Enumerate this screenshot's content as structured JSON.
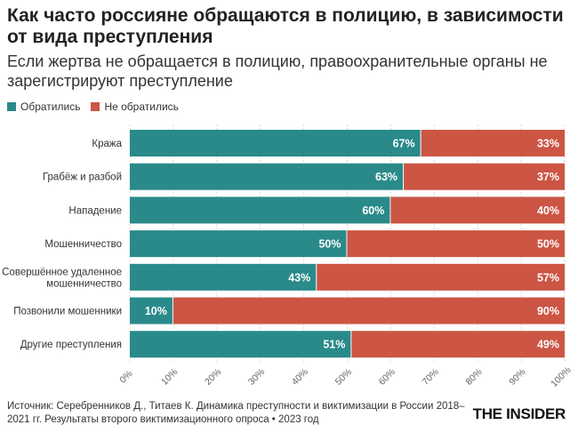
{
  "title": "Как часто россияне обращаются в полицию, в зависимости от вида преступления",
  "subtitle": "Если жертва не обращается в полицию, правоохранительные органы не зарегистрируют преступление",
  "legend": {
    "reported": "Обратились",
    "not_reported": "Не обратились"
  },
  "colors": {
    "reported": "#2a8a8a",
    "not_reported": "#cc5544"
  },
  "source": "Источник: Серебренников Д., Титаев К. Динамика преступности и виктимизации в России 2018–2021 гг. Результаты второго виктимизационного опроса • 2023 год",
  "logo": "THE INSIDER",
  "chart_data": {
    "type": "bar",
    "orientation": "horizontal",
    "stacked": true,
    "categories": [
      "Кража",
      "Грабёж и разбой",
      "Нападение",
      "Мошенничество",
      "Совершённое удаленное мошенничество",
      "Позвонили мошенники",
      "Другие преступления"
    ],
    "category_lines": [
      [
        "Кража"
      ],
      [
        "Грабёж и разбой"
      ],
      [
        "Нападение"
      ],
      [
        "Мошенничество"
      ],
      [
        "Совершённое удаленное",
        "мошенничество"
      ],
      [
        "Позвонили мошенники"
      ],
      [
        "Другие преступления"
      ]
    ],
    "series": [
      {
        "name": "Обратились",
        "values": [
          67,
          63,
          60,
          50,
          43,
          10,
          51
        ]
      },
      {
        "name": "Не обратились",
        "values": [
          33,
          37,
          40,
          50,
          57,
          90,
          49
        ]
      }
    ],
    "xlim": [
      0,
      100
    ],
    "xticks": [
      0,
      10,
      20,
      30,
      40,
      50,
      60,
      70,
      80,
      90,
      100
    ],
    "tick_suffix": "%",
    "value_suffix": "%",
    "legend_position": "top-left",
    "grid": true
  }
}
